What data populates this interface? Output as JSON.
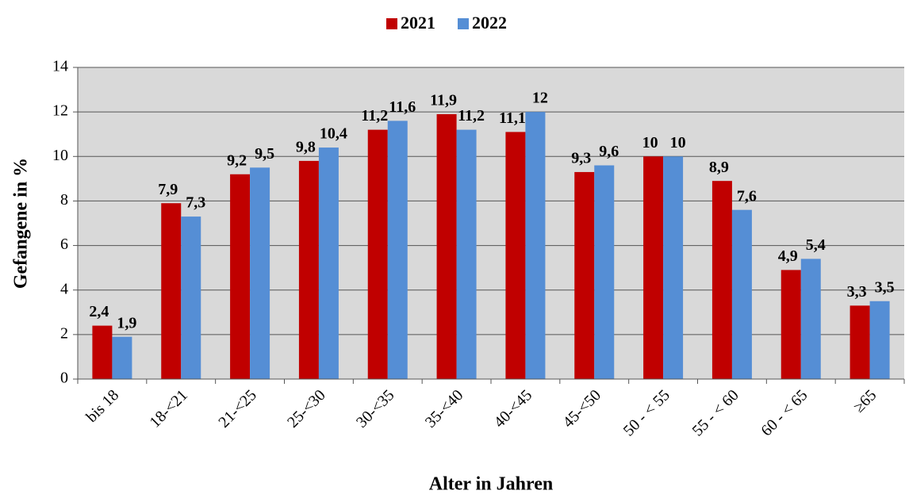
{
  "chart_data": {
    "type": "bar",
    "categories": [
      "bis 18",
      "18-<21",
      "21-<25",
      "25-<30",
      "30-<35",
      "35-<40",
      "40-<45",
      "45-<50",
      "50 - < 55",
      "55 - < 60",
      "60 - < 65",
      "≥65"
    ],
    "series": [
      {
        "name": "2021",
        "color": "#c00000",
        "values": [
          2.4,
          7.9,
          9.2,
          9.8,
          11.2,
          11.9,
          11.1,
          9.3,
          10,
          8.9,
          4.9,
          3.3
        ],
        "value_labels": [
          "2,4",
          "7,9",
          "9,2",
          "9,8",
          "11,2",
          "11,9",
          "11,1",
          "9,3",
          "10",
          "8,9",
          "4,9",
          "3,3"
        ]
      },
      {
        "name": "2022",
        "color": "#558ed5",
        "values": [
          1.9,
          7.3,
          9.5,
          10.4,
          11.6,
          11.2,
          12,
          9.6,
          10,
          7.6,
          5.4,
          3.5
        ],
        "value_labels": [
          "1,9",
          "7,3",
          "9,5",
          "10,4",
          "11,6",
          "11,2",
          "12",
          "9,6",
          "10",
          "7,6",
          "5,4",
          "3,5"
        ]
      }
    ],
    "x_label": "Alter in Jahren",
    "y_label": "Gefangene in %",
    "ylim": [
      0,
      14
    ],
    "yticks": [
      0,
      2,
      4,
      6,
      8,
      10,
      12,
      14
    ],
    "grid": true,
    "legend": "top"
  }
}
